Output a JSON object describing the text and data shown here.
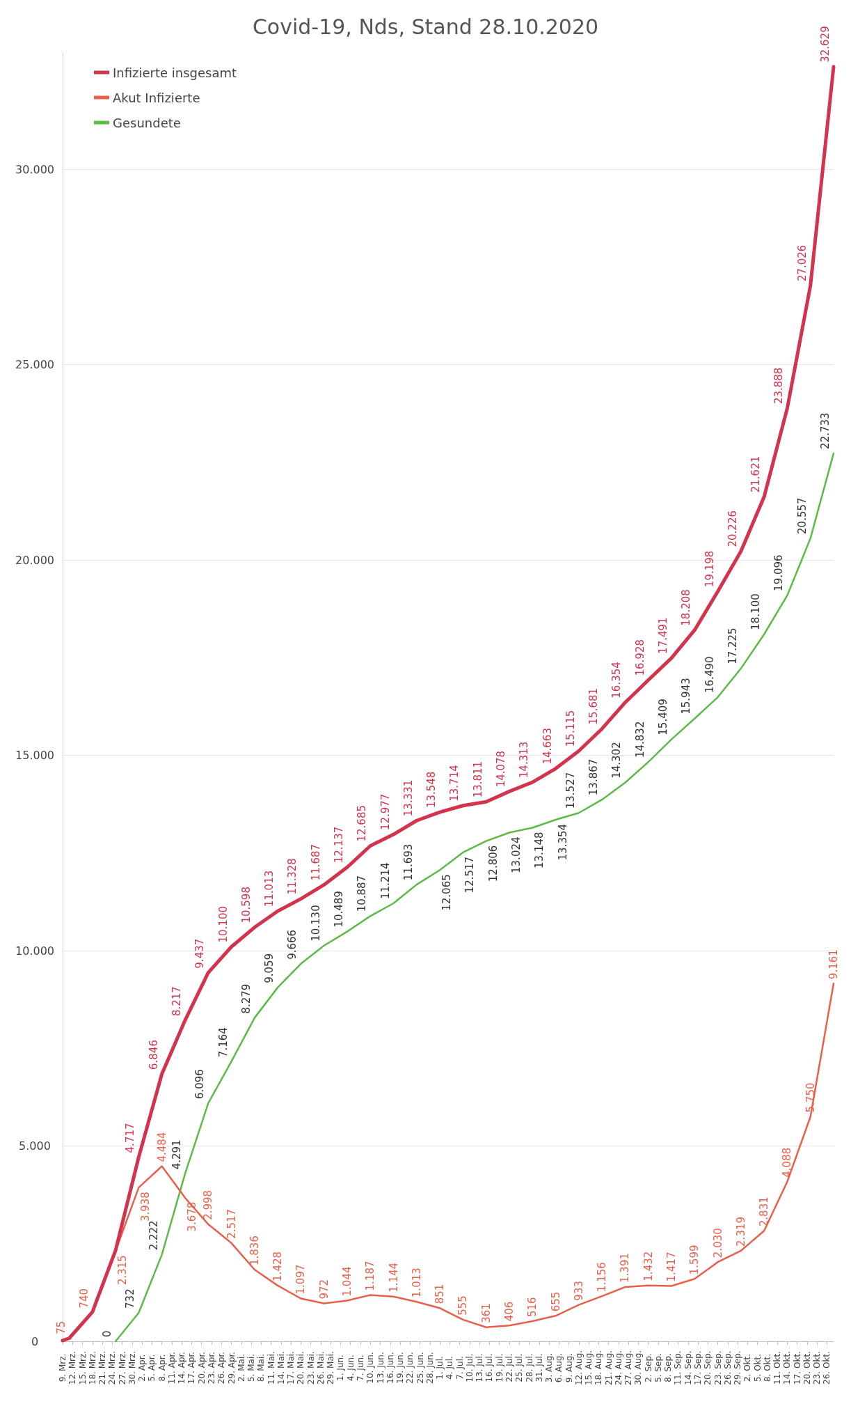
{
  "chart_data": {
    "type": "line",
    "title": "Covid-19, Nds, Stand 28.10.2020",
    "x": [
      "2020-03-09",
      "2020-03-11",
      "2020-03-18",
      "2020-03-25",
      "2020-04-01",
      "2020-04-08",
      "2020-04-15",
      "2020-04-22",
      "2020-04-29",
      "2020-05-06",
      "2020-05-13",
      "2020-05-20",
      "2020-05-27",
      "2020-06-03",
      "2020-06-10",
      "2020-06-17",
      "2020-06-24",
      "2020-07-01",
      "2020-07-08",
      "2020-07-15",
      "2020-07-22",
      "2020-07-29",
      "2020-08-05",
      "2020-08-12",
      "2020-08-19",
      "2020-08-26",
      "2020-09-02",
      "2020-09-09",
      "2020-09-16",
      "2020-09-23",
      "2020-09-30",
      "2020-10-07",
      "2020-10-14",
      "2020-10-21",
      "2020-10-28"
    ],
    "series": [
      {
        "name": "Infizierte insgesamt",
        "color": "#d2334d",
        "values": [
          20,
          80,
          750,
          2330,
          4717,
          6846,
          8217,
          9437,
          10100,
          10598,
          11013,
          11328,
          11687,
          12137,
          12685,
          12977,
          13331,
          13548,
          13714,
          13811,
          14078,
          14313,
          14663,
          15115,
          15681,
          16354,
          16928,
          17491,
          18208,
          19198,
          20226,
          21621,
          23888,
          27026,
          32629
        ],
        "value_labels": [
          null,
          null,
          null,
          null,
          "4.717",
          "6.846",
          "8.217",
          "9.437",
          "10.100",
          "10.598",
          "11.013",
          "11.328",
          "11.687",
          "12.137",
          "12.685",
          "12.977",
          "13.331",
          "13.548",
          "13.714",
          "13.811",
          "14.078",
          "14.313",
          "14.663",
          "15.115",
          "15.681",
          "16.354",
          "16.928",
          "17.491",
          "18.208",
          "19.198",
          "20.226",
          "21.621",
          "23.888",
          "27.026",
          "32.629"
        ]
      },
      {
        "name": "Akut Infizierte",
        "color": "#e8604a",
        "values": [
          20,
          75,
          740,
          2315,
          3938,
          4484,
          3678,
          2998,
          2517,
          1836,
          1428,
          1097,
          972,
          1044,
          1187,
          1144,
          1013,
          851,
          555,
          361,
          406,
          516,
          655,
          933,
          1156,
          1391,
          1432,
          1417,
          1599,
          2030,
          2319,
          2831,
          4088,
          5750,
          9161
        ],
        "value_labels": [
          null,
          "75",
          "740",
          "2.315",
          "3.938",
          "4.484",
          "3.678",
          "2.998",
          "2.517",
          "1.836",
          "1.428",
          "1.097",
          "972",
          "1.044",
          "1.187",
          "1.144",
          "1.013",
          "851",
          "555",
          "361",
          "406",
          "516",
          "655",
          "933",
          "1.156",
          "1.391",
          "1.432",
          "1.417",
          "1.599",
          "2.030",
          "2.319",
          "2.831",
          "4.088",
          "5.750",
          "9.161"
        ]
      },
      {
        "name": "Gesundete",
        "color": "#5cba47",
        "values": [
          null,
          null,
          null,
          0,
          732,
          2222,
          4291,
          6096,
          7164,
          8279,
          9059,
          9666,
          10130,
          10489,
          10887,
          11214,
          11693,
          12065,
          12517,
          12806,
          13024,
          13148,
          13354,
          13527,
          13867,
          14302,
          14832,
          15409,
          15943,
          16490,
          17225,
          18100,
          19096,
          20557,
          22733
        ],
        "value_labels": [
          null,
          null,
          null,
          "0",
          "732",
          "2.222",
          "4.291",
          "6.096",
          "7.164",
          "8.279",
          "9.059",
          "9.666",
          "10.130",
          "10.489",
          "10.887",
          "11.214",
          "11.693",
          "12.065",
          "12.517",
          "12.806",
          "13.024",
          "13.148",
          "13.354",
          "13.527",
          "13.867",
          "14.302",
          "14.832",
          "15.409",
          "15.943",
          "16.490",
          "17.225",
          "18.100",
          "19.096",
          "20.557",
          "22.733"
        ]
      }
    ],
    "xlim": [
      "2020-03-09",
      "2020-10-28"
    ],
    "xticks": [
      {
        "value": "2020-03-09",
        "label": "9. Mrz."
      },
      {
        "value": "2020-03-12",
        "label": "12. Mrz."
      },
      {
        "value": "2020-03-15",
        "label": "15. Mrz."
      },
      {
        "value": "2020-03-18",
        "label": "18. Mrz."
      },
      {
        "value": "2020-03-21",
        "label": "21. Mrz."
      },
      {
        "value": "2020-03-24",
        "label": "24. Mrz."
      },
      {
        "value": "2020-03-27",
        "label": "27. Mrz."
      },
      {
        "value": "2020-03-30",
        "label": "30. Mrz."
      },
      {
        "value": "2020-04-02",
        "label": "2. Apr."
      },
      {
        "value": "2020-04-05",
        "label": "5. Apr."
      },
      {
        "value": "2020-04-08",
        "label": "8. Apr."
      },
      {
        "value": "2020-04-11",
        "label": "11. Apr."
      },
      {
        "value": "2020-04-14",
        "label": "14. Apr."
      },
      {
        "value": "2020-04-17",
        "label": "17. Apr."
      },
      {
        "value": "2020-04-20",
        "label": "20. Apr."
      },
      {
        "value": "2020-04-23",
        "label": "23. Apr."
      },
      {
        "value": "2020-04-26",
        "label": "26. Apr."
      },
      {
        "value": "2020-04-29",
        "label": "29. Apr."
      },
      {
        "value": "2020-05-02",
        "label": "2. Mai."
      },
      {
        "value": "2020-05-05",
        "label": "5. Mai."
      },
      {
        "value": "2020-05-08",
        "label": "8. Mai."
      },
      {
        "value": "2020-05-11",
        "label": "11. Mai."
      },
      {
        "value": "2020-05-14",
        "label": "14. Mai."
      },
      {
        "value": "2020-05-17",
        "label": "17. Mai."
      },
      {
        "value": "2020-05-20",
        "label": "20. Mai."
      },
      {
        "value": "2020-05-23",
        "label": "23. Mai."
      },
      {
        "value": "2020-05-26",
        "label": "26. Mai."
      },
      {
        "value": "2020-05-29",
        "label": "29. Mai."
      },
      {
        "value": "2020-06-01",
        "label": "1. Jun."
      },
      {
        "value": "2020-06-04",
        "label": "4. Jun."
      },
      {
        "value": "2020-06-07",
        "label": "7. Jun."
      },
      {
        "value": "2020-06-10",
        "label": "10. Jun."
      },
      {
        "value": "2020-06-13",
        "label": "13. Jun."
      },
      {
        "value": "2020-06-16",
        "label": "16. Jun."
      },
      {
        "value": "2020-06-19",
        "label": "19. Jun."
      },
      {
        "value": "2020-06-22",
        "label": "22. Jun."
      },
      {
        "value": "2020-06-25",
        "label": "25. Jun."
      },
      {
        "value": "2020-06-28",
        "label": "28. Jun."
      },
      {
        "value": "2020-07-01",
        "label": "1. Jul."
      },
      {
        "value": "2020-07-04",
        "label": "4. Jul."
      },
      {
        "value": "2020-07-07",
        "label": "7. Jul."
      },
      {
        "value": "2020-07-10",
        "label": "10. Jul."
      },
      {
        "value": "2020-07-13",
        "label": "13. Jul."
      },
      {
        "value": "2020-07-16",
        "label": "16. Jul."
      },
      {
        "value": "2020-07-19",
        "label": "19. Jul."
      },
      {
        "value": "2020-07-22",
        "label": "22. Jul."
      },
      {
        "value": "2020-07-25",
        "label": "25. Jul."
      },
      {
        "value": "2020-07-28",
        "label": "28. Jul."
      },
      {
        "value": "2020-07-31",
        "label": "31. Jul."
      },
      {
        "value": "2020-08-03",
        "label": "3. Aug."
      },
      {
        "value": "2020-08-06",
        "label": "6. Aug."
      },
      {
        "value": "2020-08-09",
        "label": "9. Aug."
      },
      {
        "value": "2020-08-12",
        "label": "12. Aug."
      },
      {
        "value": "2020-08-15",
        "label": "15. Aug."
      },
      {
        "value": "2020-08-18",
        "label": "18. Aug."
      },
      {
        "value": "2020-08-21",
        "label": "21. Aug."
      },
      {
        "value": "2020-08-24",
        "label": "24. Aug."
      },
      {
        "value": "2020-08-27",
        "label": "27. Aug."
      },
      {
        "value": "2020-08-30",
        "label": "30. Aug."
      },
      {
        "value": "2020-09-02",
        "label": "2. Sep."
      },
      {
        "value": "2020-09-05",
        "label": "5. Sep."
      },
      {
        "value": "2020-09-08",
        "label": "8. Sep."
      },
      {
        "value": "2020-09-11",
        "label": "11. Sep."
      },
      {
        "value": "2020-09-14",
        "label": "14. Sep."
      },
      {
        "value": "2020-09-17",
        "label": "17. Sep."
      },
      {
        "value": "2020-09-20",
        "label": "20. Sep."
      },
      {
        "value": "2020-09-23",
        "label": "23. Sep."
      },
      {
        "value": "2020-09-26",
        "label": "26. Sep."
      },
      {
        "value": "2020-09-29",
        "label": "29. Sep."
      },
      {
        "value": "2020-10-02",
        "label": "2. Okt."
      },
      {
        "value": "2020-10-05",
        "label": "5. Okt."
      },
      {
        "value": "2020-10-08",
        "label": "8. Okt."
      },
      {
        "value": "2020-10-11",
        "label": "11. Okt."
      },
      {
        "value": "2020-10-14",
        "label": "14. Okt."
      },
      {
        "value": "2020-10-17",
        "label": "17. Okt."
      },
      {
        "value": "2020-10-20",
        "label": "20. Okt."
      },
      {
        "value": "2020-10-23",
        "label": "23. Okt."
      },
      {
        "value": "2020-10-26",
        "label": "26. Okt."
      }
    ],
    "ylim": [
      0,
      33000
    ],
    "yticks": [
      {
        "value": 0,
        "label": "0"
      },
      {
        "value": 5000,
        "label": "5.000"
      },
      {
        "value": 10000,
        "label": "10.000"
      },
      {
        "value": 15000,
        "label": "15.000"
      },
      {
        "value": 20000,
        "label": "20.000"
      },
      {
        "value": 25000,
        "label": "25.000"
      },
      {
        "value": 30000,
        "label": "30.000"
      }
    ],
    "grid": "y",
    "legend": "top left",
    "marker": "none",
    "line_style": "solid"
  }
}
